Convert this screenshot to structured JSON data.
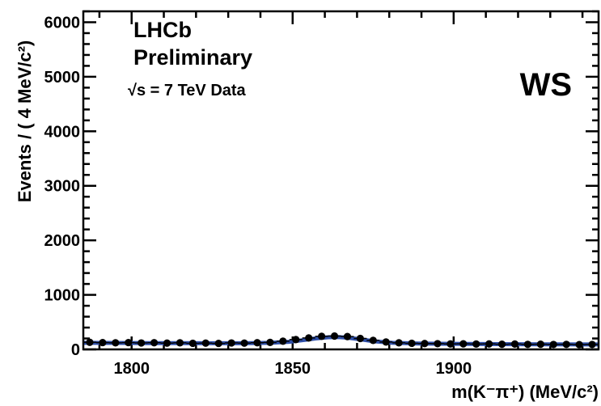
{
  "chart_data": {
    "type": "scatter",
    "title": "",
    "xlabel": "m(K⁻π⁺) (MeV/c²)",
    "ylabel": "Events / ( 4 MeV/c²)",
    "xlim": [
      1785,
      1945
    ],
    "ylim": [
      0,
      6200
    ],
    "xticks": [
      1800,
      1850,
      1900
    ],
    "yticks": [
      0,
      1000,
      2000,
      3000,
      4000,
      5000,
      6000
    ],
    "grid": false,
    "annotations": {
      "experiment": "LHCb",
      "status": "Preliminary",
      "energy": "√s = 7 TeV Data",
      "tag": "WS"
    },
    "series": [
      {
        "kind": "data",
        "x": [
          1787,
          1791,
          1795,
          1799,
          1803,
          1807,
          1811,
          1815,
          1819,
          1823,
          1827,
          1831,
          1835,
          1839,
          1843,
          1847,
          1851,
          1855,
          1859,
          1863,
          1867,
          1871,
          1875,
          1879,
          1883,
          1887,
          1891,
          1895,
          1899,
          1903,
          1907,
          1911,
          1915,
          1919,
          1923,
          1927,
          1931,
          1935,
          1939,
          1943
        ],
        "y": [
          130,
          125,
          120,
          125,
          118,
          122,
          115,
          120,
          112,
          115,
          110,
          118,
          115,
          122,
          128,
          150,
          180,
          210,
          240,
          245,
          235,
          200,
          165,
          135,
          120,
          112,
          108,
          105,
          100,
          102,
          98,
          100,
          95,
          98,
          92,
          95,
          90,
          92,
          88,
          90
        ]
      },
      {
        "kind": "fit",
        "x": [
          1785,
          1795,
          1805,
          1815,
          1825,
          1835,
          1843,
          1849,
          1853,
          1857,
          1861,
          1864,
          1867,
          1871,
          1875,
          1881,
          1889,
          1899,
          1910,
          1920,
          1930,
          1945
        ],
        "y": [
          120,
          118,
          116,
          114,
          112,
          112,
          120,
          140,
          168,
          200,
          222,
          225,
          215,
          185,
          150,
          120,
          108,
          102,
          98,
          95,
          92,
          90
        ]
      }
    ],
    "colors": {
      "points": "#000000",
      "fit": "#2f4fa8",
      "tag": "#1a2ae0"
    }
  }
}
